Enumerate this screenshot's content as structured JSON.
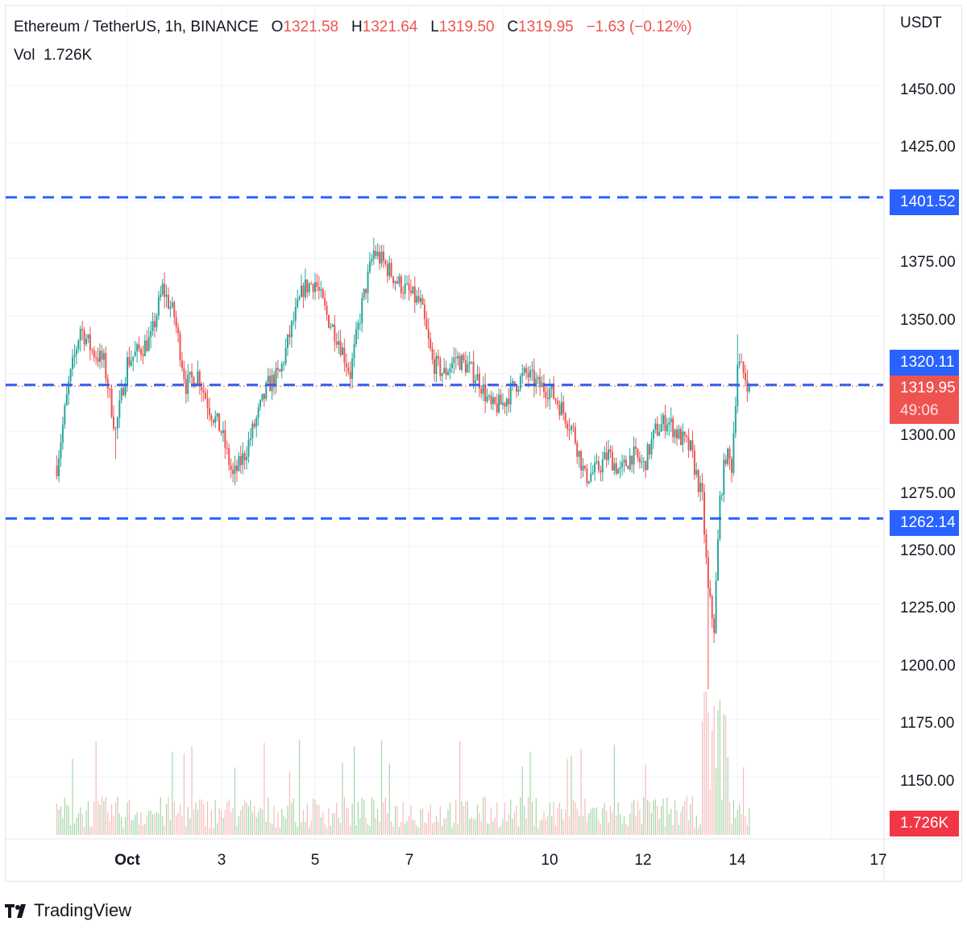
{
  "header": {
    "symbol": "Ethereum / TetherUS, 1h, BINANCE",
    "o_label": "O",
    "o_value": "1321.58",
    "h_label": "H",
    "h_value": "1321.64",
    "l_label": "L",
    "l_value": "1319.50",
    "c_label": "C",
    "c_value": "1319.95",
    "change": "−1.63 (−0.12%)",
    "vol_label": "Vol",
    "vol_value": "1.726K"
  },
  "price_axis": {
    "unit": "USDT",
    "ticks": [
      "1450.00",
      "1425.00",
      "1375.00",
      "1350.00",
      "1300.00",
      "1275.00",
      "1250.00",
      "1225.00",
      "1200.00",
      "1175.00",
      "1150.00"
    ]
  },
  "price_labels": {
    "resistance": "1401.52",
    "level": "1320.11",
    "current_price": "1319.95",
    "countdown": "49:06",
    "support": "1262.14",
    "volume": "1.726K"
  },
  "time_axis": {
    "ticks": [
      "Oct",
      "3",
      "5",
      "7",
      "10",
      "12",
      "14",
      "17"
    ]
  },
  "footer": {
    "brand": "TradingView"
  },
  "colors": {
    "up": "#26a69a",
    "down": "#ef5350",
    "line": "#2962ff",
    "grid": "#f0f3fa"
  },
  "chart_data": {
    "type": "candlestick",
    "interval": "1h",
    "symbol": "ETHUSDT",
    "y_unit": "USDT",
    "ylim": [
      1135,
      1460
    ],
    "x_ticks": [
      "Oct",
      "3",
      "5",
      "7",
      "10",
      "12",
      "14",
      "17"
    ],
    "horizontal_lines": [
      1401.52,
      1320.11,
      1262.14
    ],
    "current_price": 1319.95,
    "last_volume": "1.726K",
    "close_path": [
      {
        "t": "Sep 29 12:00",
        "c": 1285
      },
      {
        "t": "Sep 29 18:00",
        "c": 1320
      },
      {
        "t": "Sep 30 00:00",
        "c": 1345
      },
      {
        "t": "Sep 30 06:00",
        "c": 1335
      },
      {
        "t": "Sep 30 12:00",
        "c": 1330
      },
      {
        "t": "Sep 30 18:00",
        "c": 1300
      },
      {
        "t": "Oct 1 00:00",
        "c": 1330
      },
      {
        "t": "Oct 1 06:00",
        "c": 1335
      },
      {
        "t": "Oct 1 12:00",
        "c": 1340
      },
      {
        "t": "Oct 1 18:00",
        "c": 1362
      },
      {
        "t": "Oct 2 00:00",
        "c": 1350
      },
      {
        "t": "Oct 2 06:00",
        "c": 1320
      },
      {
        "t": "Oct 2 12:00",
        "c": 1325
      },
      {
        "t": "Oct 2 18:00",
        "c": 1310
      },
      {
        "t": "Oct 3 00:00",
        "c": 1300
      },
      {
        "t": "Oct 3 06:00",
        "c": 1280
      },
      {
        "t": "Oct 3 12:00",
        "c": 1290
      },
      {
        "t": "Oct 3 18:00",
        "c": 1305
      },
      {
        "t": "Oct 4 00:00",
        "c": 1320
      },
      {
        "t": "Oct 4 06:00",
        "c": 1325
      },
      {
        "t": "Oct 4 12:00",
        "c": 1345
      },
      {
        "t": "Oct 4 18:00",
        "c": 1362
      },
      {
        "t": "Oct 5 00:00",
        "c": 1365
      },
      {
        "t": "Oct 5 06:00",
        "c": 1350
      },
      {
        "t": "Oct 5 12:00",
        "c": 1340
      },
      {
        "t": "Oct 5 18:00",
        "c": 1325
      },
      {
        "t": "Oct 6 00:00",
        "c": 1355
      },
      {
        "t": "Oct 6 06:00",
        "c": 1378
      },
      {
        "t": "Oct 6 12:00",
        "c": 1372
      },
      {
        "t": "Oct 6 18:00",
        "c": 1365
      },
      {
        "t": "Oct 7 00:00",
        "c": 1360
      },
      {
        "t": "Oct 7 06:00",
        "c": 1355
      },
      {
        "t": "Oct 7 12:00",
        "c": 1330
      },
      {
        "t": "Oct 7 18:00",
        "c": 1325
      },
      {
        "t": "Oct 8 00:00",
        "c": 1332
      },
      {
        "t": "Oct 8 06:00",
        "c": 1328
      },
      {
        "t": "Oct 8 12:00",
        "c": 1322
      },
      {
        "t": "Oct 8 18:00",
        "c": 1310
      },
      {
        "t": "Oct 9 00:00",
        "c": 1312
      },
      {
        "t": "Oct 9 06:00",
        "c": 1320
      },
      {
        "t": "Oct 9 12:00",
        "c": 1325
      },
      {
        "t": "Oct 9 18:00",
        "c": 1320
      },
      {
        "t": "Oct 10 00:00",
        "c": 1318
      },
      {
        "t": "Oct 10 06:00",
        "c": 1310
      },
      {
        "t": "Oct 10 12:00",
        "c": 1300
      },
      {
        "t": "Oct 10 18:00",
        "c": 1280
      },
      {
        "t": "Oct 11 00:00",
        "c": 1283
      },
      {
        "t": "Oct 11 06:00",
        "c": 1290
      },
      {
        "t": "Oct 11 12:00",
        "c": 1282
      },
      {
        "t": "Oct 11 18:00",
        "c": 1290
      },
      {
        "t": "Oct 12 00:00",
        "c": 1285
      },
      {
        "t": "Oct 12 06:00",
        "c": 1300
      },
      {
        "t": "Oct 12 12:00",
        "c": 1305
      },
      {
        "t": "Oct 12 18:00",
        "c": 1298
      },
      {
        "t": "Oct 13 00:00",
        "c": 1292
      },
      {
        "t": "Oct 13 06:00",
        "c": 1270
      },
      {
        "t": "Oct 13 09:00",
        "c": 1230
      },
      {
        "t": "Oct 13 12:00",
        "c": 1215
      },
      {
        "t": "Oct 13 15:00",
        "c": 1270
      },
      {
        "t": "Oct 13 18:00",
        "c": 1290
      },
      {
        "t": "Oct 13 21:00",
        "c": 1285
      },
      {
        "t": "Oct 14 00:00",
        "c": 1330
      },
      {
        "t": "Oct 14 03:00",
        "c": 1325
      },
      {
        "t": "Oct 14 06:00",
        "c": 1319.95
      }
    ]
  }
}
